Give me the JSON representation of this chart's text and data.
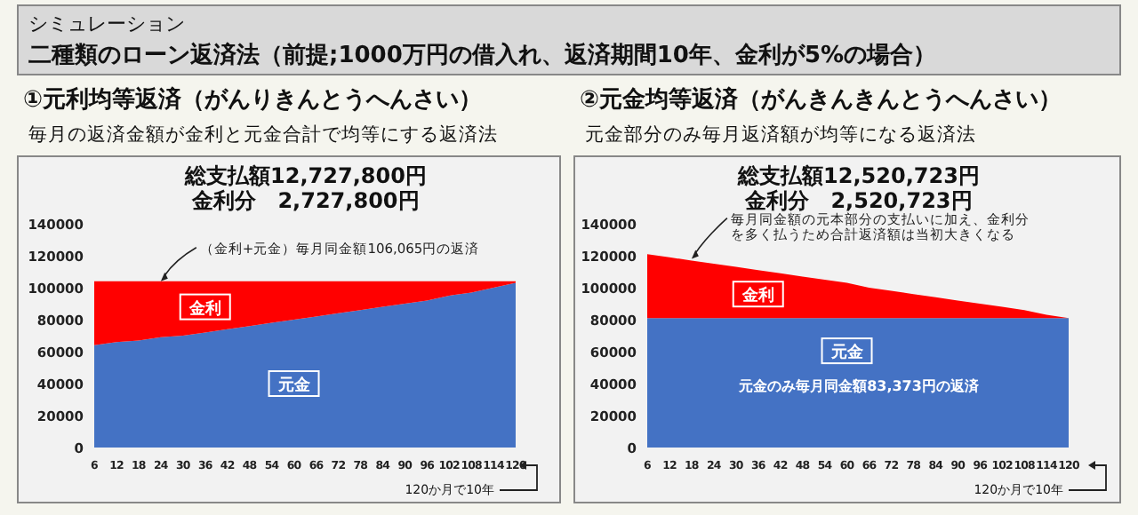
{
  "chart_data": [
    {
      "type": "area",
      "stacked": true,
      "title": "①元利均等返済（がんりきんとうへんさい）",
      "subtitle": "毎月の返済金額が金利と元金合計で均等にする返済法",
      "categories": [
        "6",
        "12",
        "18",
        "24",
        "30",
        "36",
        "42",
        "48",
        "54",
        "60",
        "66",
        "72",
        "78",
        "84",
        "90",
        "96",
        "102",
        "108",
        "114",
        "120"
      ],
      "series": [
        {
          "name": "元金",
          "color": "#4472c4",
          "values": [
            64000,
            66000,
            67000,
            69000,
            70000,
            72000,
            74000,
            76000,
            78000,
            80000,
            82000,
            84000,
            86000,
            88000,
            90000,
            92000,
            95000,
            97000,
            100000,
            103000
          ]
        },
        {
          "name": "金利",
          "color": "#ff0000",
          "values": [
            40000,
            38000,
            37000,
            35000,
            34000,
            32000,
            30000,
            28000,
            26000,
            24000,
            22000,
            20000,
            18000,
            16000,
            14000,
            12000,
            9000,
            7000,
            4000,
            1000
          ]
        }
      ],
      "ylim": [
        0,
        140000
      ],
      "yticks": [
        0,
        20000,
        40000,
        60000,
        80000,
        100000,
        120000,
        140000
      ],
      "grid": false,
      "annotations": [
        "シミュレーション",
        "二種類のローン返済法（前提;1000万円の借入れ、返済期間10年、金利が5%の場合）",
        "総支払額12,727,800円",
        "金利分　2,727,800円",
        {
          "text": "（金利+元金）毎月同金額106,065円の返済",
          "x": "24",
          "y": 104000
        },
        "120か月で10年"
      ]
    },
    {
      "type": "area",
      "stacked": true,
      "title": "②元金均等返済（がんきんきんとうへんさい）",
      "subtitle": "元金部分のみ毎月返済額が均等になる返済法",
      "categories": [
        "6",
        "12",
        "18",
        "24",
        "30",
        "36",
        "42",
        "48",
        "54",
        "60",
        "66",
        "72",
        "78",
        "84",
        "90",
        "96",
        "102",
        "108",
        "114",
        "120"
      ],
      "series": [
        {
          "name": "元金",
          "color": "#4472c4",
          "values": [
            81000,
            81000,
            81000,
            81000,
            81000,
            81000,
            81000,
            81000,
            81000,
            81000,
            81000,
            81000,
            81000,
            81000,
            81000,
            81000,
            81000,
            81000,
            81000,
            81000
          ]
        },
        {
          "name": "金利",
          "color": "#ff0000",
          "values": [
            40000,
            38000,
            36000,
            34000,
            32000,
            30000,
            28000,
            26000,
            24000,
            22000,
            19000,
            17000,
            15000,
            13000,
            11000,
            9000,
            7000,
            5000,
            2000,
            0
          ]
        }
      ],
      "ylim": [
        0,
        140000
      ],
      "yticks": [
        0,
        20000,
        40000,
        60000,
        80000,
        100000,
        120000,
        140000
      ],
      "grid": false,
      "annotations": [
        "総支払額12,520,723円",
        "金利分　2,520,723円",
        {
          "text": "毎月同金額の元本部分の支払いに加え、金利分を多く払うため合計返済額は当初大きくなる",
          "x": "18",
          "y": 118000
        },
        "元金のみ毎月同金額83,373円の返済",
        "120か月で10年"
      ]
    }
  ]
}
